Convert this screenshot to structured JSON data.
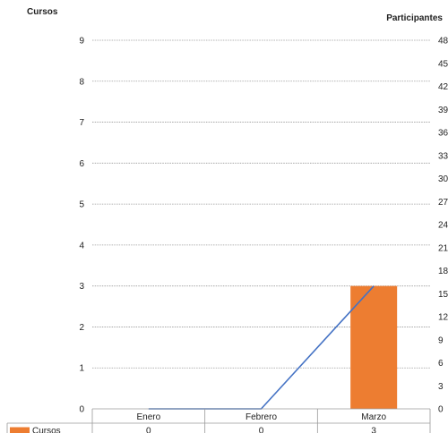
{
  "chart_data": {
    "type": "bar",
    "categories": [
      "Enero",
      "Febrero",
      "Marzo"
    ],
    "y_left_title": "Cursos",
    "y_right_title": "Participantes",
    "ylim_left": [
      0,
      9
    ],
    "ylim_right": [
      0,
      48
    ],
    "left_ticks": [
      0,
      1,
      2,
      3,
      4,
      5,
      6,
      7,
      8,
      9
    ],
    "right_ticks": [
      0,
      3,
      6,
      9,
      12,
      15,
      18,
      21,
      24,
      27,
      30,
      33,
      36,
      39,
      42,
      45,
      48
    ],
    "grid": true,
    "legend_placement": "data-table-left",
    "series": [
      {
        "name": "Cursos",
        "kind": "bar",
        "axis": "left",
        "color": "#ED7D31",
        "values": [
          0,
          0,
          3
        ]
      },
      {
        "name": "Participantes",
        "kind": "line",
        "axis": "right",
        "color": "#4472C4",
        "values": [
          0,
          0,
          16
        ]
      }
    ]
  }
}
